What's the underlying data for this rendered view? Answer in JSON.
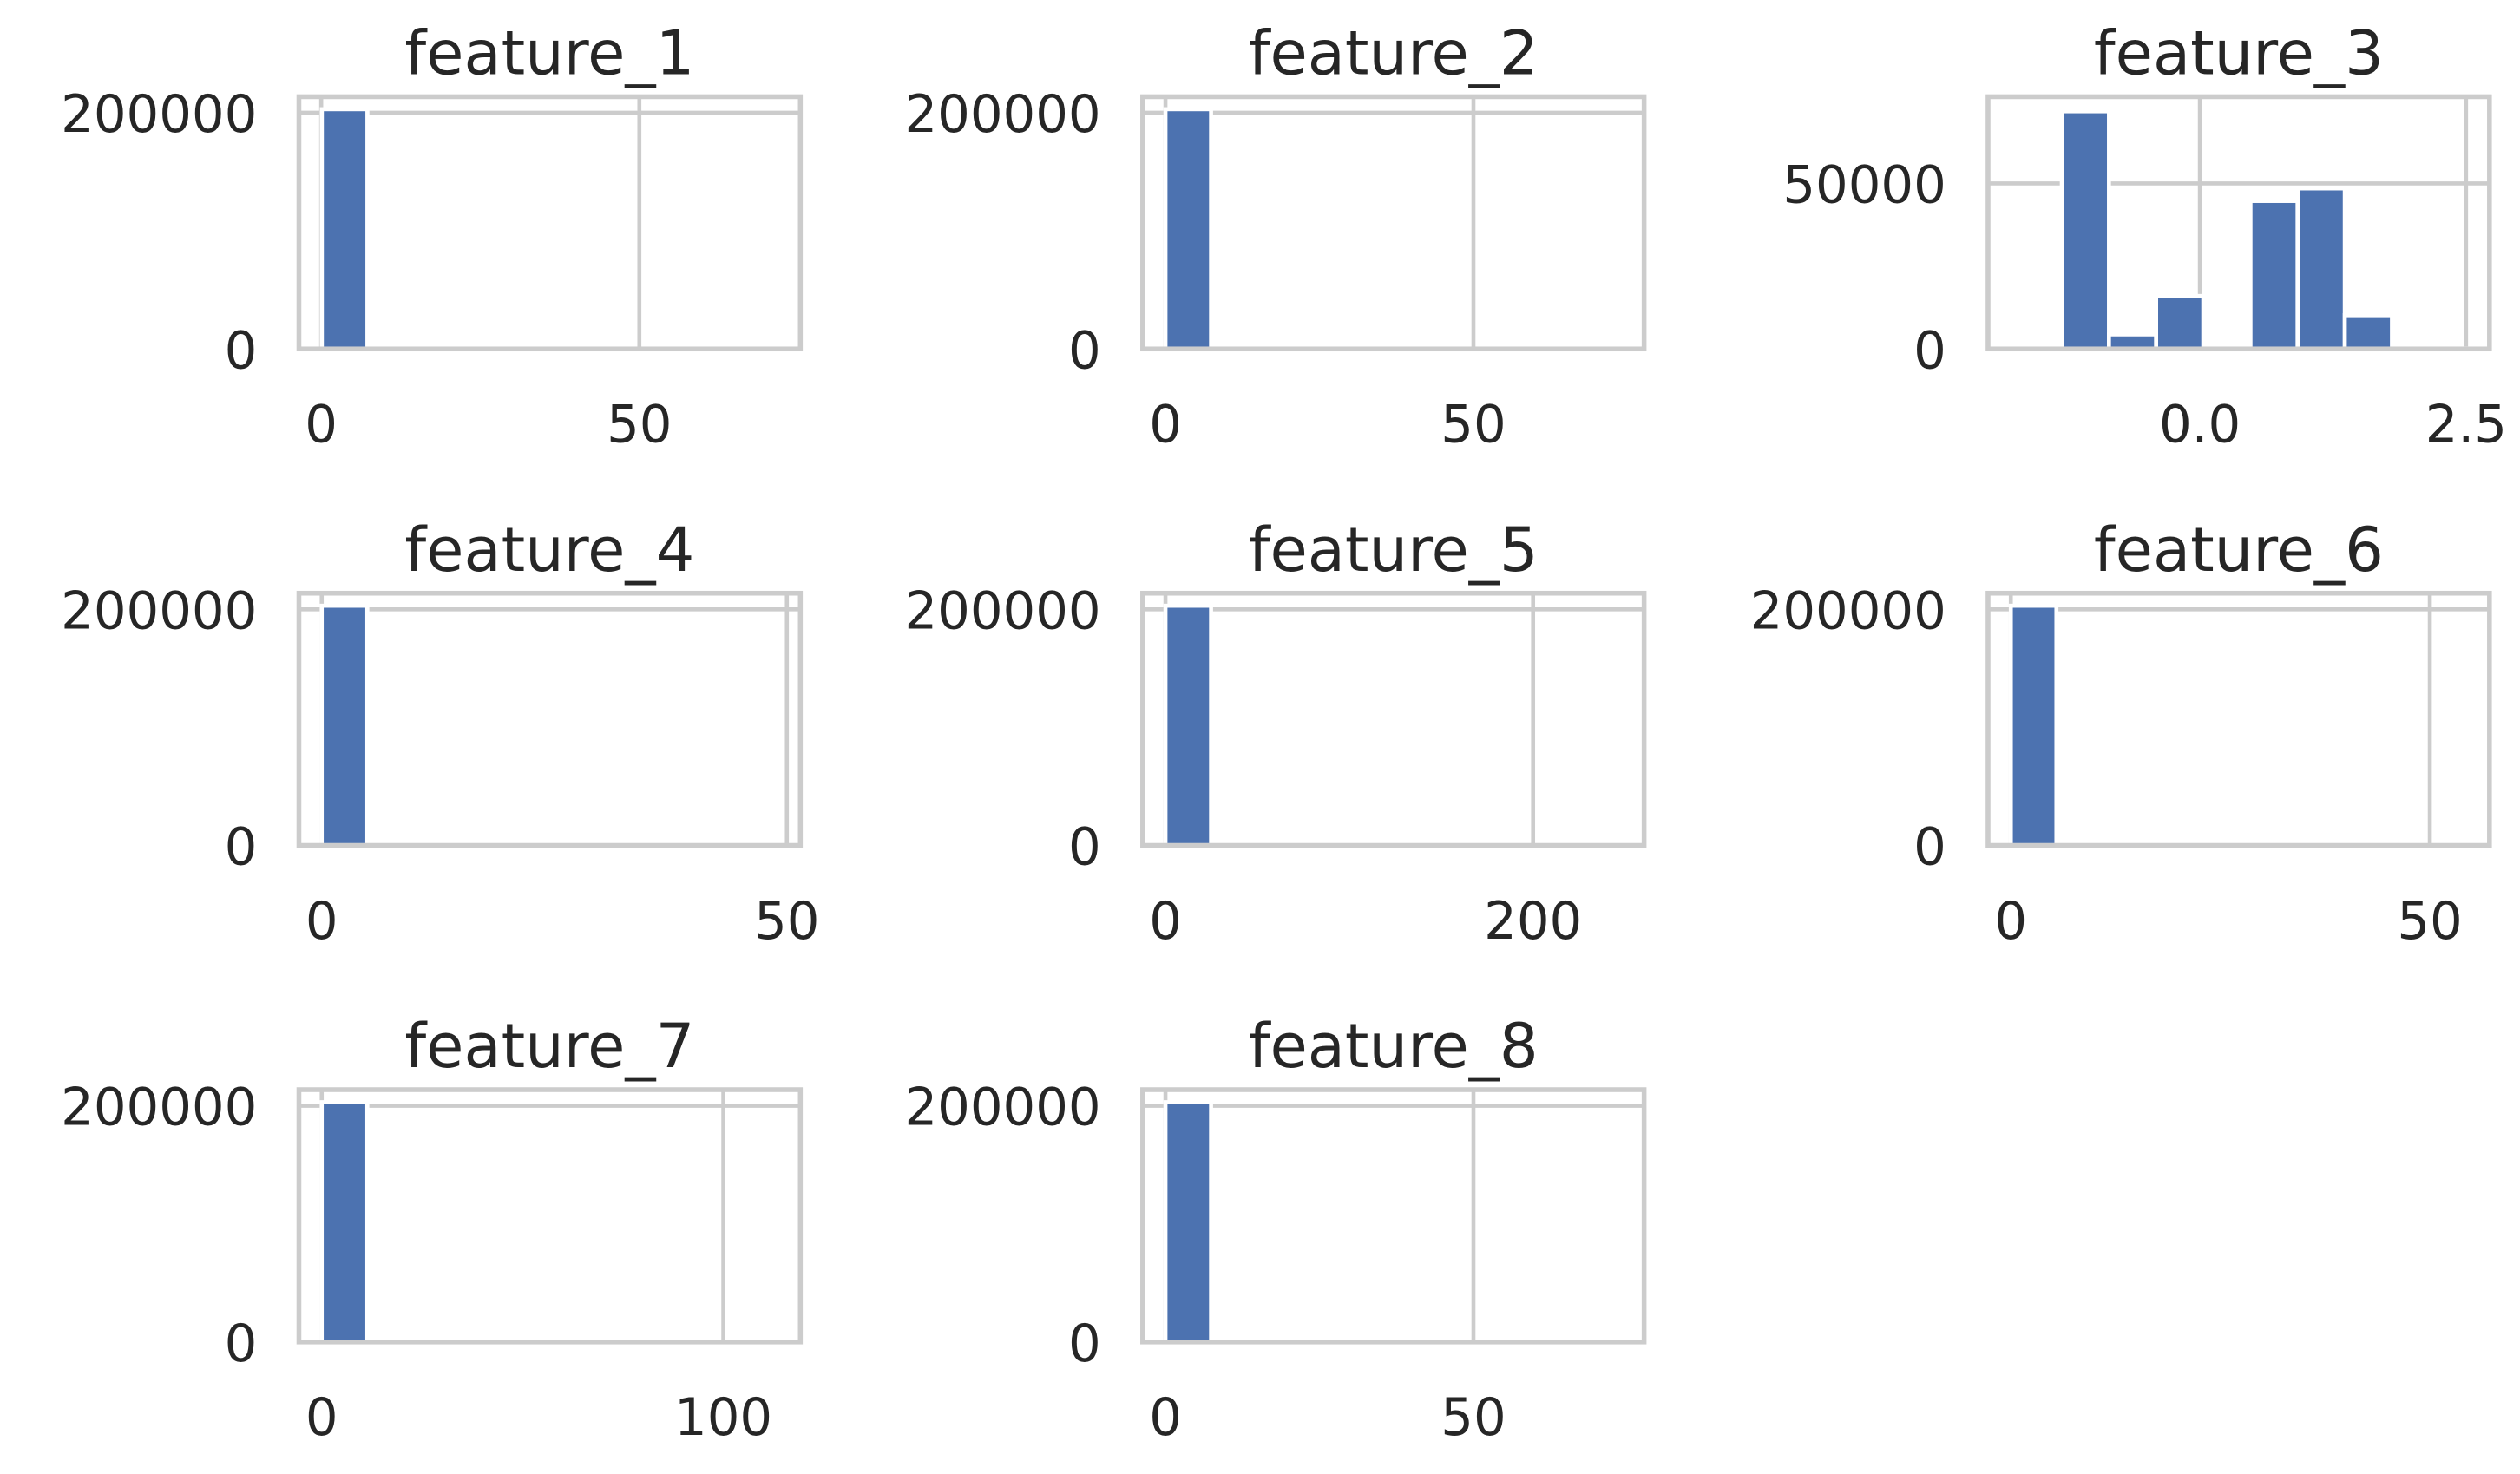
{
  "chart_data": [
    {
      "type": "histogram",
      "title": "feature_1",
      "color": "#4c72b0",
      "grid": true,
      "bins": [
        0.1,
        7.26,
        14.42,
        21.58,
        28.74,
        35.9,
        43.06,
        50.22,
        57.38,
        64.54,
        71.7
      ],
      "values": [
        203000,
        0,
        0,
        0,
        0,
        0,
        0,
        0,
        0,
        0
      ],
      "xlim": [
        -3.5,
        75.3
      ],
      "ylim": [
        0,
        213600
      ],
      "xticks": [
        0,
        50
      ],
      "yticks": [
        0,
        200000
      ]
    },
    {
      "type": "histogram",
      "title": "feature_2",
      "color": "#4c72b0",
      "grid": true,
      "bins": [
        0,
        7.4,
        14.8,
        22.2,
        29.6,
        37,
        44.4,
        51.8,
        59.2,
        66.6,
        74
      ],
      "values": [
        203000,
        0,
        0,
        0,
        0,
        0,
        0,
        0,
        0,
        0
      ],
      "xlim": [
        -3.7,
        77.7
      ],
      "ylim": [
        0,
        213600
      ],
      "xticks": [
        0,
        50
      ],
      "yticks": [
        0,
        200000
      ]
    },
    {
      "type": "histogram",
      "title": "feature_3",
      "color": "#4c72b0",
      "grid": true,
      "bins": [
        -1.74,
        -1.297,
        -0.854,
        -0.411,
        0.032,
        0.475,
        0.918,
        1.361,
        1.804,
        2.247,
        2.69
      ],
      "values": [
        200,
        71800,
        4400,
        16000,
        0,
        44700,
        48500,
        10200,
        0,
        150
      ],
      "xlim": [
        -1.99,
        2.72
      ],
      "ylim": [
        0,
        76200
      ],
      "xticks": [
        {
          "value": 0,
          "label": "0.0"
        },
        2.5
      ],
      "yticks": [
        0,
        50000
      ]
    },
    {
      "type": "histogram",
      "title": "feature_4",
      "color": "#4c72b0",
      "grid": true,
      "bins": [
        0,
        4.9,
        9.8,
        14.7,
        19.6,
        24.5,
        29.4,
        34.3,
        39.2,
        44.1,
        49
      ],
      "values": [
        203000,
        0,
        0,
        0,
        0,
        0,
        0,
        0,
        0,
        0
      ],
      "xlim": [
        -2.45,
        51.45
      ],
      "ylim": [
        0,
        213600
      ],
      "xticks": [
        0,
        50
      ],
      "yticks": [
        0,
        200000
      ]
    },
    {
      "type": "histogram",
      "title": "feature_5",
      "color": "#4c72b0",
      "grid": true,
      "bins": [
        0,
        24.8,
        49.6,
        74.4,
        99.2,
        124,
        148.8,
        173.6,
        198.4,
        223.2,
        248
      ],
      "values": [
        203000,
        0,
        0,
        0,
        0,
        0,
        0,
        0,
        0,
        0
      ],
      "xlim": [
        -12.4,
        260.4
      ],
      "ylim": [
        0,
        213600
      ],
      "xticks": [
        0,
        200
      ],
      "yticks": [
        0,
        200000
      ]
    },
    {
      "type": "histogram",
      "title": "feature_6",
      "color": "#4c72b0",
      "grid": true,
      "bins": [
        0,
        5.44,
        10.88,
        16.32,
        21.76,
        27.2,
        32.64,
        38.08,
        43.52,
        48.96,
        54.4
      ],
      "values": [
        203000,
        0,
        0,
        0,
        0,
        0,
        0,
        0,
        0,
        0
      ],
      "xlim": [
        -2.72,
        57.12
      ],
      "ylim": [
        0,
        213600
      ],
      "xticks": [
        0,
        50
      ],
      "yticks": [
        0,
        200000
      ]
    },
    {
      "type": "histogram",
      "title": "feature_7",
      "color": "#4c72b0",
      "grid": true,
      "bins": [
        0,
        11.35,
        22.7,
        34.05,
        45.4,
        56.75,
        68.1,
        79.45,
        90.8,
        102.15,
        113.5
      ],
      "values": [
        203000,
        0,
        0,
        0,
        0,
        0,
        0,
        0,
        0,
        0
      ],
      "xlim": [
        -5.675,
        119.175
      ],
      "ylim": [
        0,
        213600
      ],
      "xticks": [
        0,
        100
      ],
      "yticks": [
        0,
        200000
      ]
    },
    {
      "type": "histogram",
      "title": "feature_8",
      "color": "#4c72b0",
      "grid": true,
      "bins": [
        0,
        7.4,
        14.8,
        22.2,
        29.6,
        37,
        44.4,
        51.8,
        59.2,
        66.6,
        74
      ],
      "values": [
        203000,
        0,
        0,
        0,
        0,
        0,
        0,
        0,
        0,
        0
      ],
      "xlim": [
        -3.7,
        77.7
      ],
      "ylim": [
        0,
        213600
      ],
      "xticks": [
        0,
        50
      ],
      "yticks": [
        0,
        200000
      ]
    }
  ]
}
